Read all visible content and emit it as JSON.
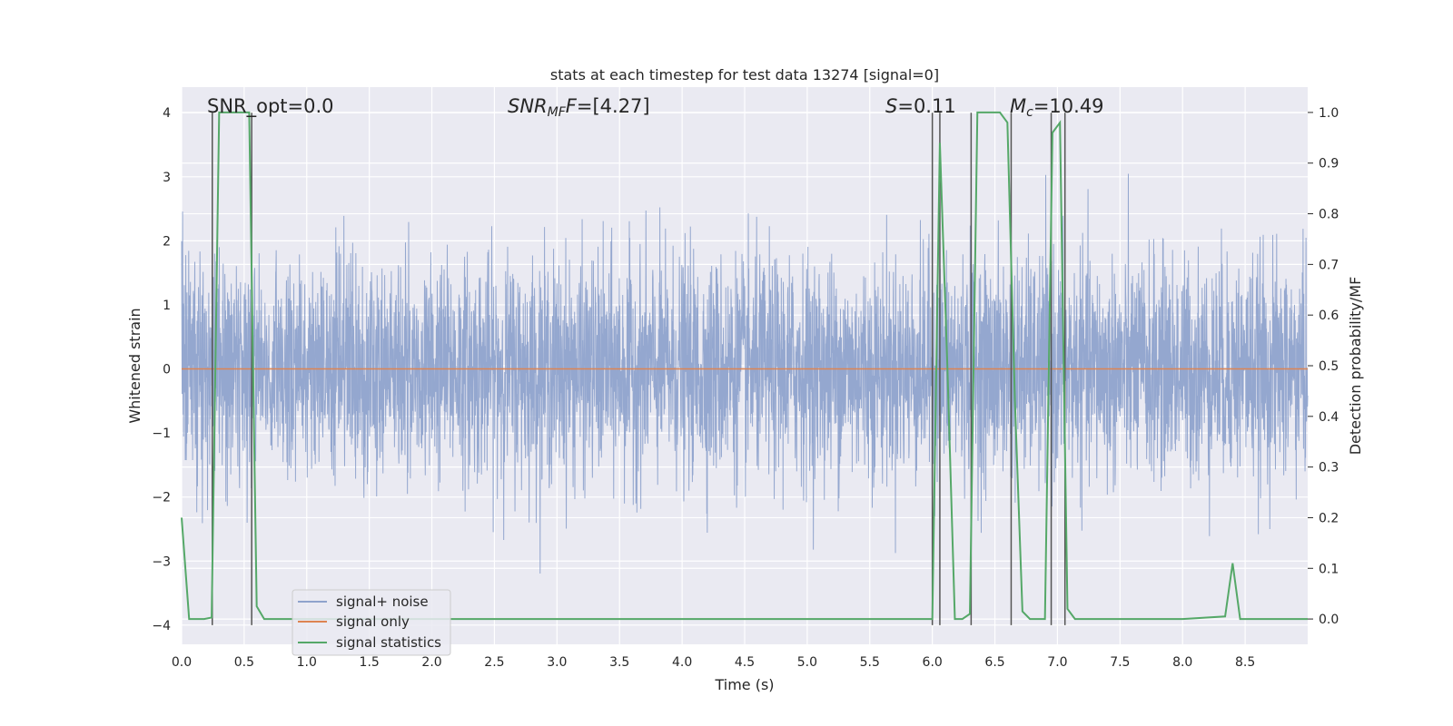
{
  "chart_data": {
    "type": "line",
    "title": "stats at each timestep for test data 13274 [signal=0]",
    "xlabel": "Time (s)",
    "ylabel_left": "Whitened strain",
    "ylabel_right": "Detection probability/MF",
    "xlim": [
      0,
      9.0
    ],
    "ylim_left": [
      -4.3,
      4.4
    ],
    "ylim_right": [
      -0.05,
      1.05
    ],
    "x_ticks": [
      0.0,
      0.5,
      1.0,
      1.5,
      2.0,
      2.5,
      3.0,
      3.5,
      4.0,
      4.5,
      5.0,
      5.5,
      6.0,
      6.5,
      7.0,
      7.5,
      8.0,
      8.5
    ],
    "x_tick_labels": [
      "0.0",
      "0.5",
      "1.0",
      "1.5",
      "2.0",
      "2.5",
      "3.0",
      "3.5",
      "4.0",
      "4.5",
      "5.0",
      "5.5",
      "6.0",
      "6.5",
      "7.0",
      "7.5",
      "8.0",
      "8.5"
    ],
    "y_left_ticks": [
      4,
      3,
      2,
      1,
      0,
      -1,
      -2,
      -3,
      -4
    ],
    "y_left_tick_labels": [
      "4",
      "3",
      "2",
      "1",
      "0",
      "−1",
      "−2",
      "−3",
      "−4"
    ],
    "y_right_ticks": [
      1.0,
      0.9,
      0.8,
      0.7,
      0.6,
      0.5,
      0.4,
      0.3,
      0.2,
      0.1,
      0.0
    ],
    "y_right_tick_labels": [
      "1.0",
      "0.9",
      "0.8",
      "0.7",
      "0.6",
      "0.5",
      "0.4",
      "0.3",
      "0.2",
      "0.1",
      "0.0"
    ],
    "grid": true,
    "legend_position": "lower-left",
    "annotations": {
      "snr_opt": "SNR_opt=0.0",
      "snr_mf_sym": "SNR",
      "snr_mf_sub": "MF",
      "snr_mf_val": "=[4.27]",
      "s_sym": "S",
      "s_val": "=0.11",
      "mc_sym": "M",
      "mc_sub": "c",
      "mc_val": "=10.49"
    },
    "series": [
      {
        "name": "signal+ noise",
        "color": "#8fa3cc",
        "kind": "noise",
        "axis": "left",
        "sample_rate": 512,
        "amplitude_sd": 0.85,
        "approx_range": [
          -3.8,
          4.0
        ]
      },
      {
        "name": "signal only",
        "color": "#dd8452",
        "axis": "left",
        "x": [
          0.0,
          9.0
        ],
        "y": [
          0.0,
          0.0
        ]
      },
      {
        "name": "signal statistics",
        "color": "#55a868",
        "axis": "right",
        "x": [
          0.0,
          0.06,
          0.12,
          0.18,
          0.24,
          0.3,
          0.36,
          0.42,
          0.48,
          0.54,
          0.6,
          0.66,
          0.72,
          1.0,
          2.0,
          3.0,
          4.0,
          5.0,
          5.5,
          6.0,
          6.06,
          6.12,
          6.18,
          6.24,
          6.3,
          6.36,
          6.42,
          6.48,
          6.54,
          6.6,
          6.66,
          6.72,
          6.78,
          6.84,
          6.9,
          6.96,
          7.02,
          7.08,
          7.14,
          7.2,
          7.26,
          7.5,
          8.0,
          8.34,
          8.4,
          8.46,
          8.52,
          8.6,
          9.0
        ],
        "y": [
          0.2,
          0.0,
          0.0,
          0.0,
          0.003,
          1.0,
          1.0,
          1.0,
          1.0,
          1.0,
          0.025,
          0.0,
          0.0,
          0.0,
          0.0,
          0.0,
          0.0,
          0.0,
          0.0,
          0.0,
          0.94,
          0.5,
          0.0,
          0.0,
          0.01,
          1.0,
          1.0,
          1.0,
          1.0,
          0.98,
          0.43,
          0.015,
          0.0,
          0.0,
          0.0,
          0.96,
          0.98,
          0.02,
          0.0,
          0.0,
          0.0,
          0.0,
          0.0,
          0.005,
          0.11,
          0.0,
          0.0,
          0.0,
          0.0
        ]
      }
    ],
    "vertical_markers": {
      "color": "#555555",
      "x": [
        0.245,
        0.56,
        6.0,
        6.06,
        6.31,
        6.63,
        6.95,
        7.06
      ],
      "ymin": -4.0,
      "ymax": 4.0
    }
  }
}
